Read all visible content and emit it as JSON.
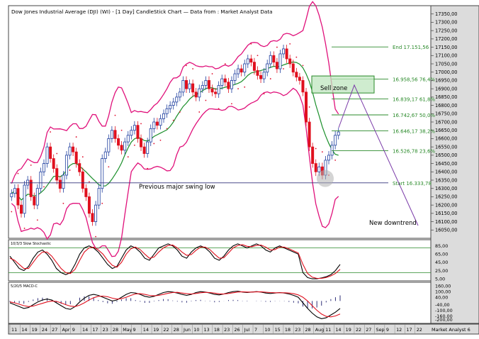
{
  "header": {
    "title": "Dow Jones Industrial Average (DJI) (WI) - [1 Day] CandleStick Chart — Data from : Market Analyst Data"
  },
  "annotations": {
    "sell_zone": "Sell zone",
    "swing_low": "Previous major swing low",
    "new_downtrend": "New downtrend"
  },
  "chart_data": [
    {
      "type": "candlestick",
      "title": "Dow Jones Industrial Average (DJI) (WI) - [1 Day] CandleStick Chart",
      "ylim": [
        16000,
        17400
      ],
      "yticks": [
        16050,
        16100,
        16150,
        16200,
        16250,
        16300,
        16350,
        16400,
        16450,
        16500,
        16550,
        16600,
        16650,
        16700,
        16750,
        16800,
        16850,
        16900,
        16950,
        17000,
        17050,
        17100,
        17150,
        17200,
        17250,
        17300,
        17350
      ],
      "ytick_labels": [
        "16050,00",
        "16100,00",
        "16150,00",
        "16200,00",
        "16250,00",
        "16300,00",
        "16350,00",
        "16400,00",
        "16450,00",
        "16500,00",
        "16550,00",
        "16600,00",
        "16650,00",
        "16700,00",
        "16750,00",
        "16800,00",
        "16850,00",
        "16900,00",
        "16950,00",
        "17000,00",
        "17050,00",
        "17100,00",
        "17150,00",
        "17200,00",
        "17250,00",
        "17300,00",
        "17350,00"
      ],
      "xtick_labels": [
        "11",
        "14",
        "19",
        "24",
        "27",
        "Apr",
        "9",
        "14",
        "17",
        "23",
        "28",
        "May",
        "9",
        "14",
        "19",
        "22",
        "28",
        "Jun",
        "10",
        "13",
        "18",
        "23",
        "26",
        "Jul",
        "7",
        "10",
        "15",
        "18",
        "23",
        "28",
        "Aug",
        "11",
        "14",
        "19",
        "22",
        "27",
        "Sep",
        "9",
        "12",
        "17",
        "22"
      ],
      "xtick_footer": "Market Analyst 6",
      "close": [
        16270,
        16300,
        16200,
        16150,
        16320,
        16350,
        16250,
        16200,
        16300,
        16400,
        16450,
        16550,
        16480,
        16420,
        16350,
        16300,
        16380,
        16500,
        16550,
        16520,
        16450,
        16400,
        16300,
        16250,
        16150,
        16100,
        16200,
        16300,
        16480,
        16520,
        16600,
        16650,
        16600,
        16560,
        16530,
        16580,
        16620,
        16650,
        16680,
        16600,
        16550,
        16510,
        16580,
        16660,
        16700,
        16680,
        16720,
        16750,
        16780,
        16800,
        16820,
        16850,
        16880,
        16950,
        16900,
        16930,
        16880,
        16850,
        16900,
        16920,
        16950,
        16900,
        16880,
        16870,
        16920,
        16960,
        16940,
        16900,
        16950,
        16990,
        17020,
        17000,
        17050,
        17080,
        17060,
        17010,
        16980,
        16960,
        17000,
        17050,
        17100,
        17060,
        17020,
        17110,
        17140,
        17080,
        17050,
        17000,
        16970,
        16950,
        16880,
        16700,
        16550,
        16450,
        16400,
        16430,
        16380,
        16470,
        16500,
        16560,
        16620,
        16640
      ],
      "fib_levels": [
        {
          "label": "End 17.151,56",
          "value": 17151.56
        },
        {
          "label": "16.958,56 76,4%",
          "value": 16958.56
        },
        {
          "label": "16.839,17 61,8%",
          "value": 16839.17
        },
        {
          "label": "16.742,67 50,0%",
          "value": 16742.67
        },
        {
          "label": "16.646,17 38,2%",
          "value": 16646.17
        },
        {
          "label": "16.526,78 23,6%",
          "value": 16526.78
        },
        {
          "label": "Start 16.333,78",
          "value": 16333.78
        }
      ],
      "sell_zone_range": [
        16900,
        16960
      ],
      "swing_low_value": 16333.78,
      "colors": {
        "up": "#1f3f9f",
        "down": "#e0101e",
        "ma": "#1a8f2a",
        "band": "#e0107a",
        "fib": "#2a8a2a",
        "projection": "#7a3aa8",
        "dots": "#e0102e"
      }
    },
    {
      "type": "line",
      "title": "10/3/3 Slow Stochastic",
      "ylim": [
        0,
        100
      ],
      "yticks": [
        5,
        25,
        45,
        65,
        85
      ],
      "ytick_labels": [
        "5,00",
        "25,00",
        "45,00",
        "65,00",
        "85,00"
      ],
      "reference_lines": [
        80,
        20
      ],
      "series": [
        {
          "values": [
            60,
            45,
            30,
            25,
            35,
            55,
            70,
            75,
            65,
            50,
            30,
            20,
            15,
            20,
            40,
            65,
            80,
            85,
            80,
            70,
            55,
            40,
            30,
            35,
            55,
            75,
            85,
            80,
            70,
            55,
            50,
            65,
            80,
            85,
            90,
            85,
            75,
            60,
            55,
            70,
            80,
            85,
            80,
            70,
            55,
            50,
            60,
            75,
            85,
            90,
            85,
            80,
            85,
            90,
            85,
            75,
            70,
            80,
            85,
            80,
            75,
            70,
            65,
            20,
            8,
            5,
            5,
            7,
            10,
            15,
            25,
            40
          ]
        },
        {
          "values": [
            55,
            50,
            40,
            30,
            30,
            45,
            60,
            70,
            70,
            60,
            45,
            30,
            20,
            18,
            28,
            50,
            70,
            80,
            82,
            75,
            65,
            50,
            38,
            33,
            45,
            65,
            78,
            82,
            76,
            65,
            55,
            58,
            70,
            80,
            86,
            87,
            80,
            70,
            62,
            64,
            74,
            82,
            82,
            76,
            65,
            55,
            56,
            68,
            80,
            86,
            88,
            84,
            83,
            86,
            87,
            82,
            75,
            76,
            82,
            82,
            78,
            73,
            68,
            40,
            18,
            9,
            6,
            6,
            8,
            12,
            18,
            28
          ]
        }
      ]
    },
    {
      "type": "line",
      "title": "5/20/5 MACD-C",
      "ylim": [
        -240,
        200
      ],
      "yticks": [
        160,
        100,
        40,
        -40,
        -100,
        -160,
        -200
      ],
      "ytick_labels": [
        "160,00",
        "100,00",
        "40,00",
        "-40,00",
        "-100,00",
        "-160,00",
        "-200,00"
      ],
      "series": [
        {
          "values": [
            -20,
            -40,
            -60,
            -80,
            -70,
            -40,
            -10,
            10,
            20,
            10,
            -20,
            -50,
            -80,
            -90,
            -60,
            -10,
            30,
            60,
            70,
            60,
            40,
            20,
            0,
            10,
            40,
            70,
            90,
            85,
            70,
            50,
            40,
            50,
            70,
            90,
            100,
            95,
            85,
            70,
            60,
            70,
            90,
            100,
            95,
            85,
            70,
            65,
            75,
            90,
            100,
            105,
            95,
            90,
            95,
            100,
            95,
            85,
            80,
            85,
            90,
            85,
            75,
            60,
            40,
            -20,
            -80,
            -130,
            -170,
            -190,
            -180,
            -150,
            -120,
            -80
          ]
        },
        {
          "values": [
            -10,
            -20,
            -35,
            -50,
            -60,
            -55,
            -40,
            -25,
            -10,
            0,
            -5,
            -20,
            -40,
            -55,
            -60,
            -45,
            -20,
            10,
            35,
            50,
            52,
            45,
            30,
            20,
            25,
            40,
            60,
            75,
            78,
            70,
            60,
            55,
            60,
            70,
            82,
            90,
            92,
            85,
            78,
            75,
            80,
            88,
            92,
            90,
            84,
            76,
            74,
            80,
            88,
            95,
            98,
            95,
            95,
            97,
            98,
            94,
            90,
            88,
            88,
            88,
            85,
            78,
            65,
            40,
            0,
            -50,
            -100,
            -140,
            -165,
            -170,
            -160,
            -140
          ]
        }
      ]
    }
  ]
}
